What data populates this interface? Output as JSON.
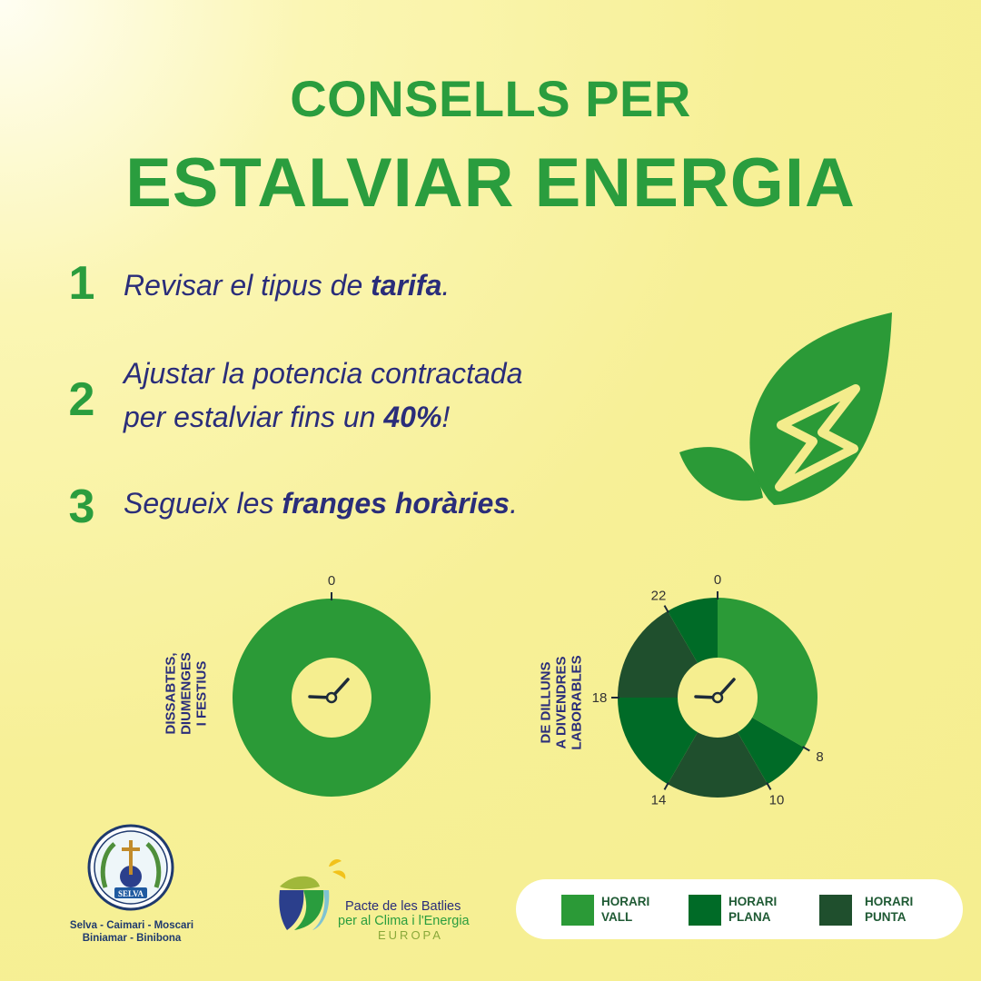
{
  "title": {
    "line1": "CONSELLS PER",
    "line2": "ESTALVIAR ENERGIA"
  },
  "tips": [
    {
      "number": "1",
      "lines": [
        [
          {
            "t": "Revisar el tipus de "
          },
          {
            "t": "tarifa",
            "b": true
          },
          {
            "t": "."
          }
        ]
      ]
    },
    {
      "number": "2",
      "lines": [
        [
          {
            "t": "Ajustar la potencia contractada"
          }
        ],
        [
          {
            "t": "per estalviar fins un "
          },
          {
            "t": "40%",
            "b": true
          },
          {
            "t": "!"
          }
        ]
      ]
    },
    {
      "number": "3",
      "lines": [
        [
          {
            "t": "Segueix les "
          },
          {
            "t": "franges horàries",
            "b": true
          },
          {
            "t": "."
          }
        ]
      ]
    }
  ],
  "clock_weekend": {
    "label_lines": [
      "DISSABTES,",
      "DIUMENGES",
      "I FESTIUS"
    ],
    "ticks": [
      {
        "hour": 0,
        "label": "0"
      }
    ],
    "segments": [
      {
        "from": 0,
        "to": 24,
        "band": "vall"
      }
    ]
  },
  "clock_weekday": {
    "label_lines": [
      "DE DILLUNS",
      "A DIVENDRES",
      "LABORABLES"
    ],
    "ticks": [
      {
        "hour": 0,
        "label": "0"
      },
      {
        "hour": 8,
        "label": "8"
      },
      {
        "hour": 10,
        "label": "10"
      },
      {
        "hour": 14,
        "label": "14"
      },
      {
        "hour": 18,
        "label": "18"
      },
      {
        "hour": 22,
        "label": "22"
      }
    ],
    "segments": [
      {
        "from": 0,
        "to": 8,
        "band": "vall"
      },
      {
        "from": 8,
        "to": 10,
        "band": "plana"
      },
      {
        "from": 10,
        "to": 14,
        "band": "punta"
      },
      {
        "from": 14,
        "to": 18,
        "band": "plana"
      },
      {
        "from": 18,
        "to": 22,
        "band": "punta"
      },
      {
        "from": 22,
        "to": 24,
        "band": "plana"
      }
    ]
  },
  "colors": {
    "vall": "#2b9a37",
    "plana": "#006b27",
    "punta": "#1f4f2d",
    "accent_green": "#2a9d3e",
    "text_navy": "#2a2d7a"
  },
  "legend": [
    {
      "band": "vall",
      "line1": "HORARI",
      "line2": "VALL"
    },
    {
      "band": "plana",
      "line1": "HORARI",
      "line2": "PLANA"
    },
    {
      "band": "punta",
      "line1": "HORARI",
      "line2": "PUNTA"
    }
  ],
  "selva": {
    "seal_text": "SELVA",
    "towns_line1": "Selva - Caimari - Moscari",
    "towns_line2": "Biniamar - Binibona"
  },
  "pacte": {
    "line1": "Pacte de les Batlies",
    "line2": "per al Clima i l'Energia",
    "line3": "EUROPA"
  },
  "icons": {
    "leaf": "leaf-lightning-icon",
    "clock": "clock-hands-icon"
  }
}
